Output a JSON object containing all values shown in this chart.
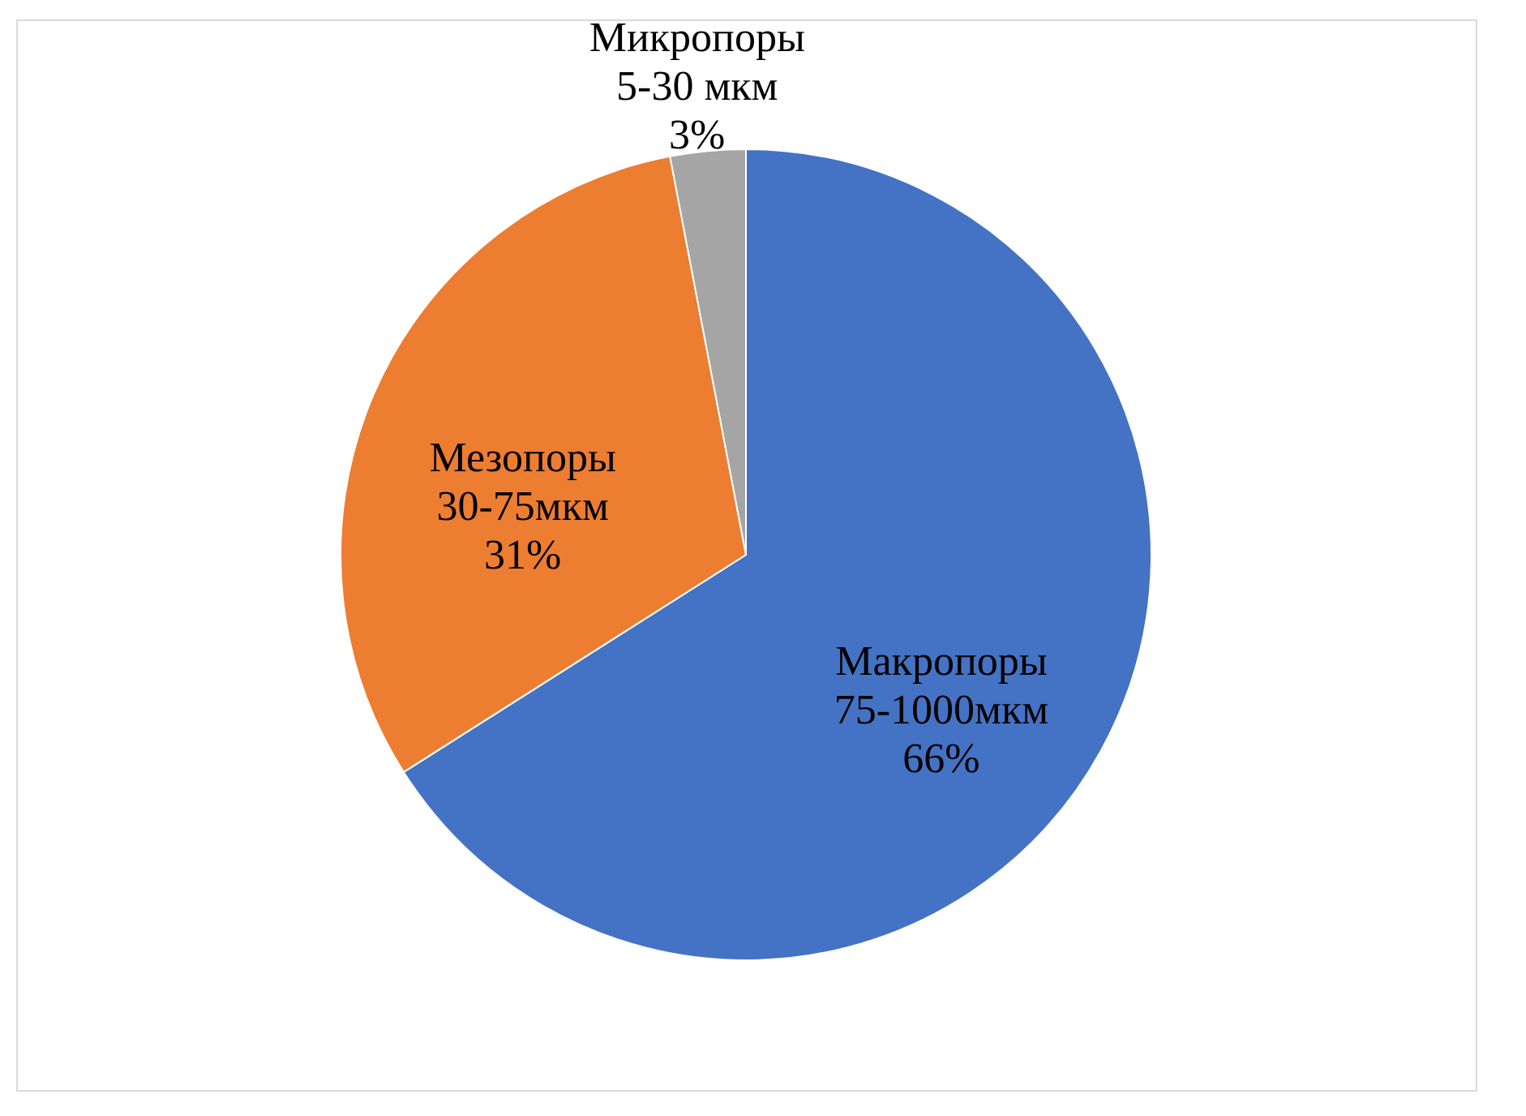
{
  "chart_data": {
    "type": "pie",
    "categories": [
      "Макропоры 75-1000мкм",
      "Мезопоры 30-75мкм",
      "Микропоры 5-30 мкм"
    ],
    "values": [
      66,
      31,
      3
    ],
    "colors": [
      "#4472c4",
      "#ed7d31",
      "#a5a5a5"
    ],
    "value_labels": [
      "66%",
      "31%",
      "3%"
    ],
    "legend": false
  }
}
